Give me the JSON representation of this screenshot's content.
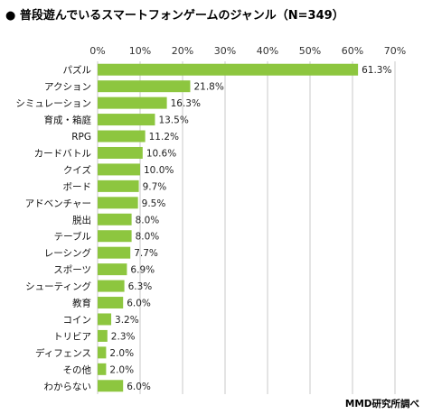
{
  "chart_data": {
    "type": "bar",
    "orientation": "horizontal",
    "title": "● 普段遊んでいるスマートフォンゲームのジャンル（N=349）",
    "source": "MMD研究所調べ",
    "categories": [
      "パズル",
      "アクション",
      "シミュレーション",
      "育成・箱庭",
      "RPG",
      "カードバトル",
      "クイズ",
      "ボード",
      "アドベンチャー",
      "脱出",
      "テーブル",
      "レーシング",
      "スポーツ",
      "シューティング",
      "教育",
      "コイン",
      "トリビア",
      "ディフェンス",
      "その他",
      "わからない"
    ],
    "values": [
      61.3,
      21.8,
      16.3,
      13.5,
      11.2,
      10.6,
      10.0,
      9.7,
      9.5,
      8.0,
      8.0,
      7.7,
      6.9,
      6.3,
      6.0,
      3.2,
      2.3,
      2.0,
      2.0,
      6.0
    ],
    "value_labels": [
      "61.3%",
      "21.8%",
      "16.3%",
      "13.5%",
      "11.2%",
      "10.6%",
      "10.0%",
      "9.7%",
      "9.5%",
      "8.0%",
      "8.0%",
      "7.7%",
      "6.9%",
      "6.3%",
      "6.0%",
      "3.2%",
      "2.3%",
      "2.0%",
      "2.0%",
      "6.0%"
    ],
    "xticks": [
      "0%",
      "10%",
      "20%",
      "30%",
      "40%",
      "50%",
      "60%",
      "70%"
    ],
    "xlim": [
      0,
      70
    ],
    "grid": true,
    "bar_color": "#8dc63f"
  }
}
